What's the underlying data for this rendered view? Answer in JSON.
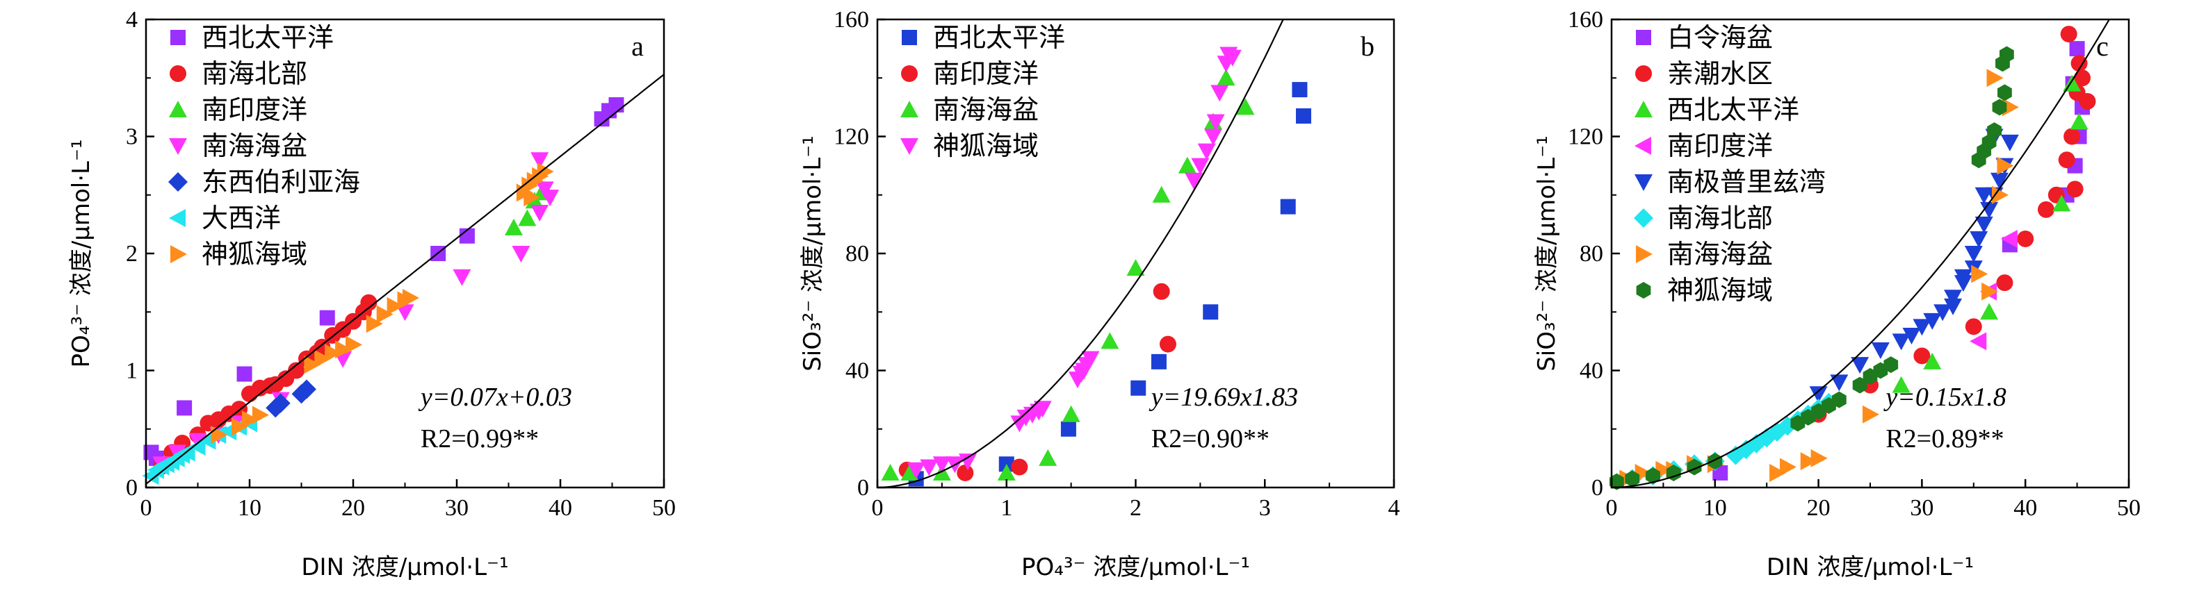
{
  "figure_width": 3150,
  "figure_height": 864,
  "chart_data": [
    {
      "type": "scatter",
      "panel_label": "a",
      "xlabel": "DIN 浓度/μmol·L⁻¹",
      "ylabel": "PO₄³⁻ 浓度/μmol·L⁻¹",
      "xlim": [
        0,
        50
      ],
      "ylim": [
        0,
        4
      ],
      "xticks": [
        0,
        10,
        20,
        30,
        40,
        50
      ],
      "yticks": [
        0,
        1,
        2,
        3,
        4
      ],
      "legend_position": "top-left",
      "fit": {
        "model": "linear",
        "a": 0.07,
        "b": 0.03,
        "equation": "y=0.07x+0.03",
        "r2": "R2=0.99**"
      },
      "series": [
        {
          "name": "西北太平洋",
          "marker": "square",
          "color": "#9b30ff",
          "x": [
            0.5,
            3.7,
            9.5,
            17.5,
            28.2,
            31.0,
            44.0,
            44.7,
            45.4,
            1.0
          ],
          "y": [
            0.3,
            0.68,
            0.97,
            1.45,
            2.0,
            2.15,
            3.15,
            3.22,
            3.27,
            0.25
          ]
        },
        {
          "name": "南海北部",
          "marker": "circle",
          "color": "#ee1c25",
          "x": [
            1.5,
            2.5,
            3.5,
            5.0,
            6.0,
            7.0,
            8.0,
            9.0,
            10.0,
            11.0,
            12.0,
            13.5,
            14.5,
            15.5,
            17.0,
            18.0,
            19.0,
            20.0,
            21.0,
            21.5,
            16.5,
            12.5
          ],
          "y": [
            0.18,
            0.3,
            0.38,
            0.45,
            0.55,
            0.58,
            0.63,
            0.67,
            0.8,
            0.85,
            0.87,
            0.93,
            1.0,
            1.1,
            1.2,
            1.3,
            1.35,
            1.42,
            1.5,
            1.58,
            1.15,
            0.88
          ]
        },
        {
          "name": "南印度洋",
          "marker": "triangle-up",
          "color": "#33dd22",
          "x": [
            35.5,
            36.8,
            37.5,
            38.2
          ],
          "y": [
            2.22,
            2.3,
            2.45,
            2.52
          ]
        },
        {
          "name": "南海海盆",
          "marker": "triangle-down",
          "color": "#ff33ff",
          "x": [
            1.5,
            3.0,
            5.0,
            7.0,
            9.0,
            13.0,
            19.0,
            25.0,
            30.5,
            36.2,
            38.0,
            38.5,
            39.0,
            38.0
          ],
          "y": [
            0.2,
            0.3,
            0.4,
            0.45,
            0.55,
            0.75,
            1.1,
            1.5,
            1.8,
            2.0,
            2.35,
            2.55,
            2.48,
            2.8
          ]
        },
        {
          "name": "东西伯利亚海",
          "marker": "diamond",
          "color": "#1c3fd6",
          "x": [
            12.5,
            13.0,
            15.0,
            15.5
          ],
          "y": [
            0.68,
            0.72,
            0.8,
            0.84
          ]
        },
        {
          "name": "大西洋",
          "marker": "triangle-left",
          "color": "#22e5ee",
          "x": [
            0.5,
            1.0,
            1.5,
            2.0,
            2.5,
            3.0,
            3.5,
            4.0,
            5.0,
            6.0,
            7.0,
            8.0,
            9.0,
            10.0
          ],
          "y": [
            0.1,
            0.15,
            0.18,
            0.2,
            0.22,
            0.25,
            0.28,
            0.3,
            0.35,
            0.4,
            0.45,
            0.48,
            0.52,
            0.55
          ]
        },
        {
          "name": "神狐海域",
          "marker": "triangle-right",
          "color": "#ff8c1a",
          "x": [
            7.0,
            9.0,
            10.0,
            11.0,
            16.0,
            17.0,
            18.0,
            19.0,
            20.0,
            22.0,
            23.0,
            24.0,
            25.0,
            25.5,
            36.5,
            37.0,
            37.5,
            38.0,
            38.5,
            37.2
          ],
          "y": [
            0.45,
            0.52,
            0.58,
            0.62,
            1.05,
            1.1,
            1.15,
            1.18,
            1.22,
            1.4,
            1.48,
            1.55,
            1.6,
            1.62,
            2.52,
            2.58,
            2.62,
            2.66,
            2.7,
            2.48
          ]
        }
      ]
    },
    {
      "type": "scatter",
      "panel_label": "b",
      "xlabel": "PO₄³⁻ 浓度/μmol·L⁻¹",
      "ylabel": "SiO₃²⁻ 浓度/μmol·L⁻¹",
      "xlim": [
        0,
        4
      ],
      "ylim": [
        0,
        160
      ],
      "xticks": [
        0,
        1,
        2,
        3,
        4
      ],
      "yticks": [
        0,
        40,
        80,
        120,
        160
      ],
      "legend_position": "top-left",
      "fit": {
        "model": "power",
        "a": 19.69,
        "b": 1.83,
        "equation": "y=19.69x1.83",
        "r2": "R2=0.90**"
      },
      "series": [
        {
          "name": "西北太平洋",
          "marker": "square",
          "color": "#1c3fd6",
          "x": [
            0.3,
            1.0,
            1.48,
            2.02,
            2.18,
            2.58,
            3.18,
            3.27,
            3.3
          ],
          "y": [
            3,
            8,
            20,
            34,
            43,
            60,
            96,
            136,
            127
          ]
        },
        {
          "name": "南印度洋",
          "marker": "circle",
          "color": "#ee1c25",
          "x": [
            0.23,
            0.68,
            1.1,
            2.2,
            2.25
          ],
          "y": [
            6,
            5,
            7,
            67,
            49
          ]
        },
        {
          "name": "南海海盆",
          "marker": "triangle-up",
          "color": "#33dd22",
          "x": [
            0.1,
            0.25,
            0.5,
            1.0,
            1.32,
            1.5,
            1.8,
            2.0,
            2.2,
            2.4,
            2.6,
            2.7,
            2.85
          ],
          "y": [
            5,
            5,
            5,
            5,
            10,
            25,
            50,
            75,
            100,
            110,
            125,
            140,
            130
          ]
        },
        {
          "name": "神狐海域",
          "marker": "triangle-down",
          "color": "#ff33ff",
          "x": [
            0.3,
            0.4,
            0.5,
            0.6,
            0.7,
            1.1,
            1.15,
            1.2,
            1.25,
            1.28,
            1.55,
            1.58,
            1.6,
            1.62,
            1.65,
            2.45,
            2.5,
            2.55,
            2.6,
            2.62,
            2.65,
            2.7,
            2.72,
            2.75
          ],
          "y": [
            6,
            7,
            8,
            8,
            9,
            22,
            24,
            25,
            26,
            27,
            37,
            39,
            40,
            42,
            44,
            105,
            110,
            115,
            120,
            125,
            135,
            145,
            148,
            147
          ]
        }
      ]
    },
    {
      "type": "scatter",
      "panel_label": "c",
      "xlabel": "DIN 浓度/μmol·L⁻¹",
      "ylabel": "SiO₃²⁻ 浓度/μmol·L⁻¹",
      "xlim": [
        0,
        50
      ],
      "ylim": [
        0,
        160
      ],
      "xticks": [
        0,
        10,
        20,
        30,
        40,
        50
      ],
      "yticks": [
        0,
        40,
        80,
        120,
        160
      ],
      "legend_position": "top-left",
      "fit": {
        "model": "power",
        "a": 0.15,
        "b": 1.8,
        "equation": "y=0.15x1.8",
        "r2": "R2=0.89**"
      },
      "series": [
        {
          "name": "白令海盆",
          "marker": "square",
          "color": "#9b30ff",
          "x": [
            10.5,
            38.5,
            44.0,
            44.8,
            45.2,
            45.5,
            45.0,
            44.6
          ],
          "y": [
            5,
            83,
            100,
            110,
            120,
            130,
            150,
            138
          ]
        },
        {
          "name": "亲潮水区",
          "marker": "circle",
          "color": "#ee1c25",
          "x": [
            20,
            25,
            30,
            35,
            38,
            40,
            42,
            43,
            44,
            44.5,
            45,
            45.5,
            46,
            44.2,
            45.2,
            44.8
          ],
          "y": [
            25,
            35,
            45,
            55,
            70,
            85,
            95,
            100,
            112,
            120,
            135,
            140,
            132,
            155,
            145,
            102
          ]
        },
        {
          "name": "西北太平洋",
          "marker": "triangle-up",
          "color": "#33dd22",
          "x": [
            28,
            31,
            36.5,
            43.5,
            44.5,
            45.2
          ],
          "y": [
            35,
            43,
            60,
            97,
            138,
            125
          ]
        },
        {
          "name": "南印度洋",
          "marker": "triangle-left",
          "color": "#ff33ff",
          "x": [
            35.5,
            36.5,
            38.5
          ],
          "y": [
            50,
            67,
            85
          ]
        },
        {
          "name": "南极普里兹湾",
          "marker": "triangle-down",
          "color": "#1c3fd6",
          "x": [
            20,
            22,
            24,
            26,
            28,
            29,
            30,
            31,
            32,
            33,
            34,
            35,
            35.5,
            36,
            36.5,
            37,
            37.5,
            38,
            38.5,
            33,
            34,
            35,
            36,
            37
          ],
          "y": [
            32,
            36,
            42,
            47,
            50,
            52,
            55,
            57,
            60,
            65,
            72,
            80,
            85,
            90,
            95,
            100,
            105,
            110,
            118,
            62,
            70,
            75,
            100,
            120
          ]
        },
        {
          "name": "南海北部",
          "marker": "diamond",
          "color": "#22e5ee",
          "x": [
            2,
            4,
            6,
            8,
            10,
            12,
            13,
            14,
            15,
            16,
            17,
            18,
            19,
            20,
            21
          ],
          "y": [
            3,
            4,
            6,
            8,
            9,
            11,
            13,
            15,
            17,
            19,
            21,
            23,
            25,
            27,
            29
          ]
        },
        {
          "name": "南海海盆",
          "marker": "triangle-right",
          "color": "#ff8c1a",
          "x": [
            1.5,
            3,
            5,
            6,
            8,
            10,
            16,
            17,
            19,
            20,
            25,
            35.5,
            36.5,
            37.5,
            38,
            38.5,
            37
          ],
          "y": [
            3,
            5,
            6,
            6,
            8,
            8,
            5,
            7,
            9,
            10,
            25,
            73,
            67,
            100,
            110,
            130,
            140
          ]
        },
        {
          "name": "神狐海域",
          "marker": "hexagon",
          "color": "#1e7a1e",
          "x": [
            0.5,
            2,
            4,
            6,
            8,
            10,
            18,
            19,
            20,
            21,
            22,
            24,
            25,
            26,
            27,
            35.5,
            36,
            36.5,
            37,
            37.5,
            38,
            37.8,
            38.2
          ],
          "y": [
            2,
            3,
            4,
            5,
            7,
            9,
            22,
            24,
            26,
            28,
            30,
            35,
            38,
            40,
            42,
            112,
            115,
            118,
            122,
            130,
            135,
            145,
            148
          ]
        }
      ]
    }
  ]
}
